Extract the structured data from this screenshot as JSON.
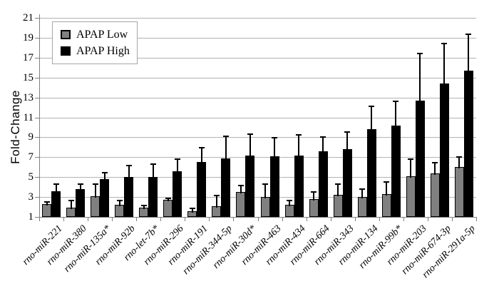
{
  "chart_data": {
    "type": "bar",
    "title": "",
    "xlabel": "",
    "ylabel": "Fold-Change",
    "ylim": [
      1,
      21
    ],
    "ytick_step": 2,
    "grid": true,
    "legend_position": "top-left",
    "error_bars": "upper",
    "categories": [
      "rno-miR-221",
      "rno-miR-380",
      "rno-miR-135a*",
      "rno-miR-92b",
      "rno-let-7b*",
      "rno-miR-296",
      "rno-miR-191",
      "rno-miR-344-5p",
      "rno-miR-30d*",
      "rno-miR-463",
      "rno-miR-434",
      "rno-miR-664",
      "rno-miR-343",
      "rno-miR-134",
      "rno-miR-99b*",
      "rno-miR-203",
      "rno-miR-674-3p",
      "rno-miR-291a-5p"
    ],
    "series": [
      {
        "name": "APAP Low",
        "color": "#808080",
        "values": [
          2.3,
          1.9,
          3.1,
          2.2,
          1.9,
          2.7,
          1.6,
          2.1,
          3.5,
          3.0,
          2.2,
          2.8,
          3.2,
          3.0,
          3.3,
          5.1,
          5.4,
          6.0
        ],
        "errors_plus": [
          0.3,
          0.8,
          1.3,
          0.5,
          0.3,
          0.2,
          0.3,
          1.1,
          0.7,
          1.4,
          0.5,
          0.8,
          1.2,
          0.9,
          1.3,
          1.8,
          1.1,
          1.1
        ]
      },
      {
        "name": "APAP High",
        "color": "#000000",
        "values": [
          3.6,
          3.8,
          4.8,
          5.0,
          5.0,
          5.6,
          6.5,
          6.9,
          7.2,
          7.1,
          7.2,
          7.6,
          7.8,
          9.8,
          10.2,
          12.7,
          14.4,
          15.7
        ],
        "errors_plus": [
          0.8,
          0.6,
          0.7,
          1.2,
          1.4,
          1.3,
          1.5,
          2.3,
          2.2,
          1.9,
          2.1,
          1.5,
          1.8,
          2.4,
          2.5,
          4.8,
          4.1,
          3.7
        ]
      }
    ]
  },
  "style": {
    "gridline_color": "#b3b3b3",
    "axis_color": "#808080",
    "bar_low_fill": "#808080",
    "bar_high_fill": "#000000",
    "background": "#ffffff"
  }
}
